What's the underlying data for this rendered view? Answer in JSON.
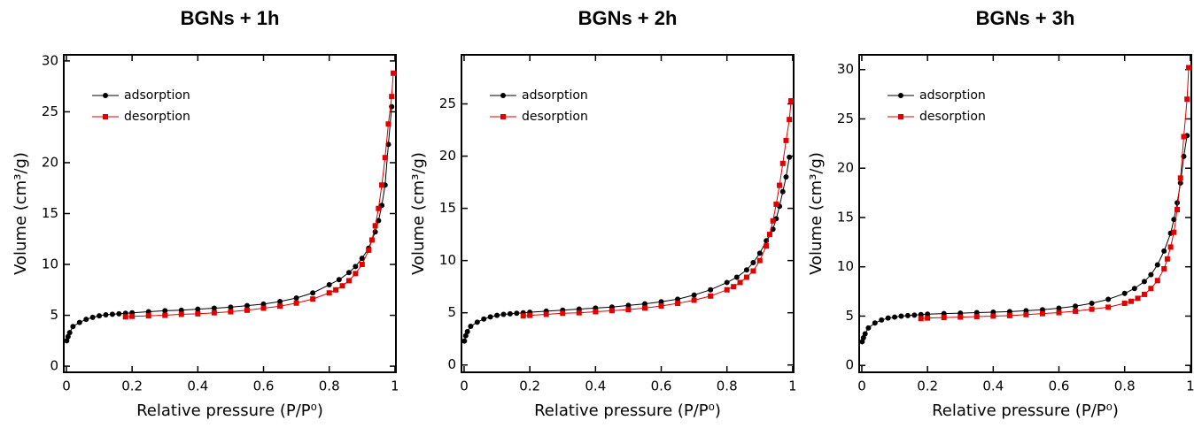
{
  "chart_data": [
    {
      "type": "line",
      "title": "BGNs + 1h",
      "x_label": "Relative pressure (P/P⁰)",
      "y_label": "Volume (cm³/g)",
      "xlim": [
        -0.008,
        1.003
      ],
      "ylim": [
        -0.6,
        30.6
      ],
      "xticks": [
        0,
        0.2,
        0.4,
        0.6,
        0.8,
        1
      ],
      "yticks": [
        0,
        5,
        10,
        15,
        20,
        25,
        30
      ],
      "legend": "upper left",
      "series": [
        {
          "name": "adsorption",
          "color": "#000000",
          "marker": "circle",
          "x": [
            0.001,
            0.005,
            0.01,
            0.02,
            0.04,
            0.06,
            0.08,
            0.1,
            0.12,
            0.14,
            0.16,
            0.18,
            0.2,
            0.25,
            0.3,
            0.35,
            0.4,
            0.45,
            0.5,
            0.55,
            0.6,
            0.65,
            0.7,
            0.75,
            0.8,
            0.83,
            0.86,
            0.88,
            0.9,
            0.92,
            0.94,
            0.95,
            0.96,
            0.97,
            0.98,
            0.99
          ],
          "values": [
            2.5,
            2.9,
            3.3,
            3.9,
            4.3,
            4.6,
            4.8,
            4.95,
            5.05,
            5.1,
            5.15,
            5.2,
            5.25,
            5.35,
            5.45,
            5.5,
            5.6,
            5.7,
            5.8,
            5.95,
            6.1,
            6.35,
            6.7,
            7.2,
            8.0,
            8.5,
            9.2,
            9.8,
            10.6,
            11.6,
            13.2,
            14.3,
            15.8,
            17.8,
            21.8,
            25.5
          ]
        },
        {
          "name": "desorption",
          "color": "#e00000",
          "marker": "square",
          "x": [
            0.995,
            0.99,
            0.98,
            0.97,
            0.96,
            0.95,
            0.94,
            0.93,
            0.92,
            0.9,
            0.88,
            0.86,
            0.84,
            0.82,
            0.8,
            0.75,
            0.7,
            0.65,
            0.6,
            0.55,
            0.5,
            0.45,
            0.4,
            0.35,
            0.3,
            0.25,
            0.2,
            0.18
          ],
          "values": [
            28.8,
            26.5,
            23.8,
            20.5,
            17.8,
            15.5,
            13.8,
            12.4,
            11.4,
            10.0,
            9.1,
            8.4,
            7.9,
            7.5,
            7.2,
            6.6,
            6.2,
            5.9,
            5.7,
            5.5,
            5.35,
            5.25,
            5.15,
            5.1,
            5.0,
            4.95,
            4.9,
            4.85
          ]
        }
      ]
    },
    {
      "type": "line",
      "title": "BGNs + 2h",
      "x_label": "Relative pressure (P/P⁰)",
      "y_label": "Volume (cm³/g)",
      "xlim": [
        -0.008,
        1.003
      ],
      "ylim": [
        -0.7,
        29.7
      ],
      "xticks": [
        0,
        0.2,
        0.4,
        0.6,
        0.8,
        1
      ],
      "yticks": [
        0,
        5,
        10,
        15,
        20,
        25
      ],
      "legend": "upper left",
      "series": [
        {
          "name": "adsorption",
          "color": "#000000",
          "marker": "circle",
          "x": [
            0.001,
            0.005,
            0.01,
            0.02,
            0.04,
            0.06,
            0.08,
            0.1,
            0.12,
            0.14,
            0.16,
            0.18,
            0.2,
            0.25,
            0.3,
            0.35,
            0.4,
            0.45,
            0.5,
            0.55,
            0.6,
            0.65,
            0.7,
            0.75,
            0.8,
            0.83,
            0.86,
            0.88,
            0.9,
            0.92,
            0.94,
            0.95,
            0.96,
            0.97,
            0.98,
            0.99
          ],
          "values": [
            2.3,
            2.8,
            3.2,
            3.7,
            4.1,
            4.4,
            4.6,
            4.75,
            4.85,
            4.9,
            4.95,
            5.0,
            5.05,
            5.15,
            5.25,
            5.35,
            5.45,
            5.55,
            5.7,
            5.85,
            6.05,
            6.3,
            6.7,
            7.2,
            7.9,
            8.4,
            9.1,
            9.8,
            10.7,
            11.9,
            13.0,
            14.0,
            15.2,
            16.6,
            18.0,
            19.9
          ]
        },
        {
          "name": "desorption",
          "color": "#e00000",
          "marker": "square",
          "x": [
            0.995,
            0.99,
            0.98,
            0.97,
            0.96,
            0.95,
            0.94,
            0.93,
            0.92,
            0.9,
            0.88,
            0.86,
            0.84,
            0.82,
            0.8,
            0.75,
            0.7,
            0.65,
            0.6,
            0.55,
            0.5,
            0.45,
            0.4,
            0.35,
            0.3,
            0.25,
            0.2,
            0.18
          ],
          "values": [
            25.3,
            23.5,
            21.5,
            19.3,
            17.2,
            15.4,
            13.8,
            12.5,
            11.4,
            10.0,
            9.0,
            8.4,
            7.9,
            7.5,
            7.2,
            6.6,
            6.2,
            5.9,
            5.65,
            5.45,
            5.3,
            5.2,
            5.1,
            5.0,
            4.95,
            4.85,
            4.75,
            4.7
          ]
        }
      ]
    },
    {
      "type": "line",
      "title": "BGNs + 3h",
      "x_label": "Relative pressure (P/P⁰)",
      "y_label": "Volume (cm³/g)",
      "xlim": [
        -0.008,
        1.003
      ],
      "ylim": [
        -0.7,
        31.5
      ],
      "xticks": [
        0,
        0.2,
        0.4,
        0.6,
        0.8,
        1
      ],
      "yticks": [
        0,
        5,
        10,
        15,
        20,
        25,
        30
      ],
      "legend": "upper left",
      "series": [
        {
          "name": "adsorption",
          "color": "#000000",
          "marker": "circle",
          "x": [
            0.001,
            0.005,
            0.01,
            0.02,
            0.04,
            0.06,
            0.08,
            0.1,
            0.12,
            0.14,
            0.16,
            0.18,
            0.2,
            0.25,
            0.3,
            0.35,
            0.4,
            0.45,
            0.5,
            0.55,
            0.6,
            0.65,
            0.7,
            0.75,
            0.8,
            0.83,
            0.86,
            0.88,
            0.9,
            0.92,
            0.94,
            0.95,
            0.96,
            0.97,
            0.98,
            0.99
          ],
          "values": [
            2.4,
            2.8,
            3.2,
            3.8,
            4.3,
            4.6,
            4.8,
            4.9,
            5.0,
            5.05,
            5.1,
            5.15,
            5.2,
            5.25,
            5.3,
            5.35,
            5.4,
            5.45,
            5.55,
            5.65,
            5.8,
            6.0,
            6.3,
            6.7,
            7.3,
            7.8,
            8.5,
            9.2,
            10.2,
            11.6,
            13.4,
            14.8,
            16.5,
            18.5,
            21.2,
            23.3
          ]
        },
        {
          "name": "desorption",
          "color": "#e00000",
          "marker": "square",
          "x": [
            0.995,
            0.99,
            0.98,
            0.97,
            0.96,
            0.95,
            0.94,
            0.93,
            0.92,
            0.9,
            0.88,
            0.86,
            0.84,
            0.82,
            0.8,
            0.75,
            0.7,
            0.65,
            0.6,
            0.55,
            0.5,
            0.45,
            0.4,
            0.35,
            0.3,
            0.25,
            0.2,
            0.18
          ],
          "values": [
            30.2,
            27.0,
            23.2,
            19.0,
            15.8,
            13.5,
            12.0,
            10.8,
            9.8,
            8.6,
            7.8,
            7.2,
            6.8,
            6.5,
            6.3,
            5.9,
            5.7,
            5.5,
            5.35,
            5.25,
            5.15,
            5.05,
            5.0,
            4.95,
            4.9,
            4.85,
            4.8,
            4.75
          ]
        }
      ]
    }
  ]
}
